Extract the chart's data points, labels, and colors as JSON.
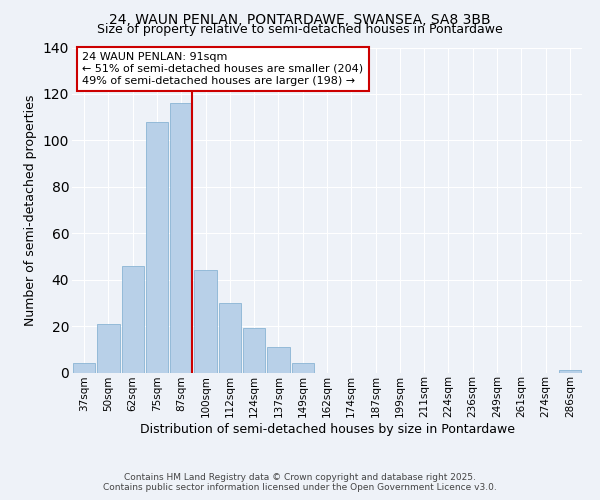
{
  "title1": "24, WAUN PENLAN, PONTARDAWE, SWANSEA, SA8 3BB",
  "title2": "Size of property relative to semi-detached houses in Pontardawe",
  "xlabel": "Distribution of semi-detached houses by size in Pontardawe",
  "ylabel": "Number of semi-detached properties",
  "bins": [
    "37sqm",
    "50sqm",
    "62sqm",
    "75sqm",
    "87sqm",
    "100sqm",
    "112sqm",
    "124sqm",
    "137sqm",
    "149sqm",
    "162sqm",
    "174sqm",
    "187sqm",
    "199sqm",
    "211sqm",
    "224sqm",
    "236sqm",
    "249sqm",
    "261sqm",
    "274sqm",
    "286sqm"
  ],
  "values": [
    4,
    21,
    46,
    108,
    116,
    44,
    30,
    19,
    11,
    4,
    0,
    0,
    0,
    0,
    0,
    0,
    0,
    0,
    0,
    0,
    1
  ],
  "bar_color": "#b8d0e8",
  "bar_edge_color": "#8ab4d4",
  "vline_color": "#cc0000",
  "vline_x_index": 4,
  "annotation_title": "24 WAUN PENLAN: 91sqm",
  "annotation_line1": "← 51% of semi-detached houses are smaller (204)",
  "annotation_line2": "49% of semi-detached houses are larger (198) →",
  "annotation_box_color": "#ffffff",
  "annotation_box_edge": "#cc0000",
  "ylim": [
    0,
    140
  ],
  "footer1": "Contains HM Land Registry data © Crown copyright and database right 2025.",
  "footer2": "Contains public sector information licensed under the Open Government Licence v3.0.",
  "background_color": "#eef2f8",
  "grid_color": "#ffffff",
  "title_fontsize": 10,
  "subtitle_fontsize": 9,
  "axis_label_fontsize": 9,
  "tick_fontsize": 7.5,
  "footer_fontsize": 6.5,
  "annotation_fontsize": 8
}
